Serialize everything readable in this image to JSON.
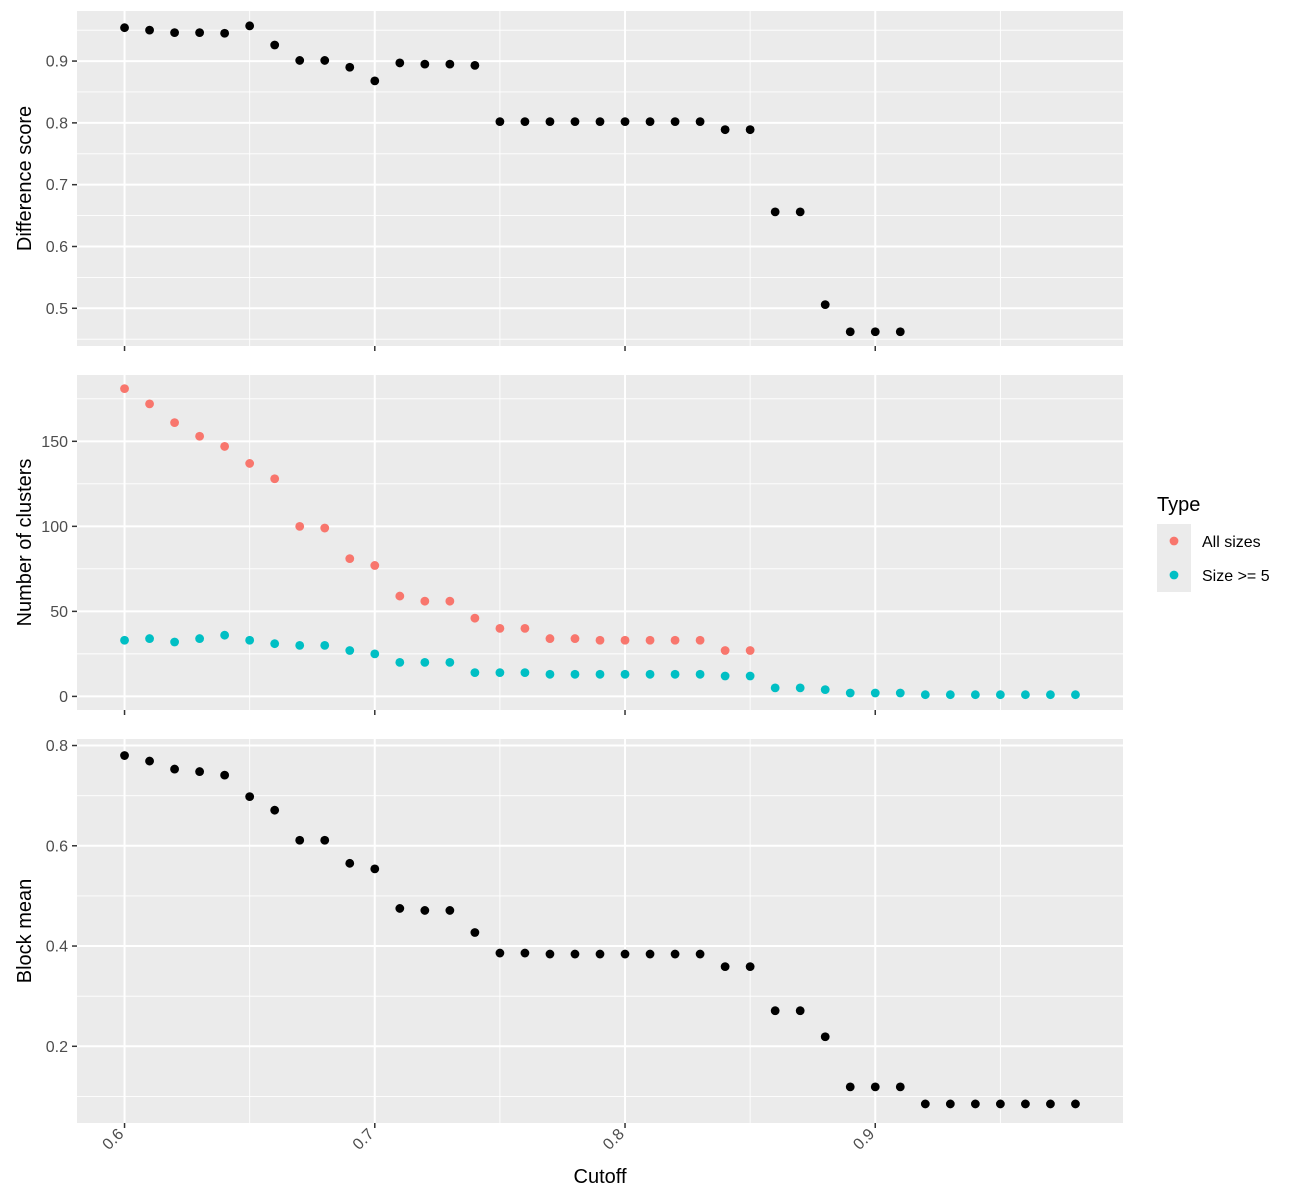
{
  "chart_data": {
    "type": "scatter",
    "x_label": "Cutoff",
    "x_ticks": [
      0.6,
      0.7,
      0.8,
      0.9
    ],
    "x_tick_labels": [
      "0.6",
      "0.7",
      "0.8",
      "0.9"
    ],
    "x_range": [
      0.581,
      0.999
    ],
    "background": "#EBEBEB",
    "grid": true,
    "legend": {
      "title": "Type",
      "position": "right",
      "entries": [
        {
          "label": "All sizes",
          "color": "#F8766D"
        },
        {
          "label": "Size >= 5",
          "color": "#00BFC4"
        }
      ]
    },
    "panels": [
      {
        "ylabel": "Difference score",
        "y_ticks": [
          0.5,
          0.6,
          0.7,
          0.8,
          0.9
        ],
        "y_tick_labels": [
          "0.5",
          "0.6",
          "0.7",
          "0.8",
          "0.9"
        ],
        "ylim": [
          0.439,
          0.981
        ],
        "series": [
          {
            "color": "#000000",
            "x": [
              0.6,
              0.61,
              0.62,
              0.63,
              0.64,
              0.65,
              0.66,
              0.67,
              0.68,
              0.69,
              0.7,
              0.71,
              0.72,
              0.73,
              0.74,
              0.75,
              0.76,
              0.77,
              0.78,
              0.79,
              0.8,
              0.81,
              0.82,
              0.83,
              0.84,
              0.85,
              0.86,
              0.87,
              0.88,
              0.89,
              0.9,
              0.91
            ],
            "y": [
              0.954,
              0.95,
              0.946,
              0.946,
              0.945,
              0.957,
              0.926,
              0.901,
              0.901,
              0.89,
              0.868,
              0.897,
              0.895,
              0.895,
              0.893,
              0.802,
              0.802,
              0.802,
              0.802,
              0.802,
              0.802,
              0.802,
              0.802,
              0.802,
              0.789,
              0.789,
              0.656,
              0.656,
              0.506,
              0.462,
              0.462,
              0.462
            ]
          }
        ]
      },
      {
        "ylabel": "Number of clusters",
        "y_ticks": [
          0,
          50,
          100,
          150
        ],
        "y_tick_labels": [
          "0",
          "50",
          "100",
          "150"
        ],
        "ylim": [
          -8,
          189
        ],
        "series": [
          {
            "name": "All sizes",
            "color": "#F8766D",
            "x": [
              0.6,
              0.61,
              0.62,
              0.63,
              0.64,
              0.65,
              0.66,
              0.67,
              0.68,
              0.69,
              0.7,
              0.71,
              0.72,
              0.73,
              0.74,
              0.75,
              0.76,
              0.77,
              0.78,
              0.79,
              0.8,
              0.81,
              0.82,
              0.83,
              0.84,
              0.85
            ],
            "y": [
              181,
              172,
              161,
              153,
              147,
              137,
              128,
              100,
              99,
              81,
              77,
              59,
              56,
              56,
              46,
              40,
              40,
              34,
              34,
              33,
              33,
              33,
              33,
              33,
              27,
              27
            ]
          },
          {
            "name": "Size >= 5",
            "color": "#00BFC4",
            "x": [
              0.6,
              0.61,
              0.62,
              0.63,
              0.64,
              0.65,
              0.66,
              0.67,
              0.68,
              0.69,
              0.7,
              0.71,
              0.72,
              0.73,
              0.74,
              0.75,
              0.76,
              0.77,
              0.78,
              0.79,
              0.8,
              0.81,
              0.82,
              0.83,
              0.84,
              0.85,
              0.86,
              0.87,
              0.88,
              0.89,
              0.9,
              0.91,
              0.92,
              0.93,
              0.94,
              0.95,
              0.96,
              0.97,
              0.98
            ],
            "y": [
              33,
              34,
              32,
              34,
              36,
              33,
              31,
              30,
              30,
              27,
              25,
              20,
              20,
              20,
              14,
              14,
              14,
              13,
              13,
              13,
              13,
              13,
              13,
              13,
              12,
              12,
              5,
              5,
              4,
              2,
              2,
              2,
              1,
              1,
              1,
              1,
              1,
              1,
              1
            ]
          }
        ]
      },
      {
        "ylabel": "Block mean",
        "y_ticks": [
          0.2,
          0.4,
          0.6,
          0.8
        ],
        "y_tick_labels": [
          "0.2",
          "0.4",
          "0.6",
          "0.8"
        ],
        "ylim": [
          0.047,
          0.813
        ],
        "series": [
          {
            "color": "#000000",
            "x": [
              0.6,
              0.61,
              0.62,
              0.63,
              0.64,
              0.65,
              0.66,
              0.67,
              0.68,
              0.69,
              0.7,
              0.71,
              0.72,
              0.73,
              0.74,
              0.75,
              0.76,
              0.77,
              0.78,
              0.79,
              0.8,
              0.81,
              0.82,
              0.83,
              0.84,
              0.85,
              0.86,
              0.87,
              0.88,
              0.89,
              0.9,
              0.91,
              0.92,
              0.93,
              0.94,
              0.95,
              0.96,
              0.97,
              0.98
            ],
            "y": [
              0.78,
              0.769,
              0.753,
              0.748,
              0.741,
              0.698,
              0.671,
              0.611,
              0.611,
              0.565,
              0.554,
              0.475,
              0.471,
              0.471,
              0.427,
              0.386,
              0.386,
              0.384,
              0.384,
              0.384,
              0.384,
              0.384,
              0.384,
              0.384,
              0.359,
              0.359,
              0.271,
              0.271,
              0.219,
              0.119,
              0.119,
              0.119,
              0.085,
              0.085,
              0.085,
              0.085,
              0.085,
              0.085,
              0.085
            ]
          }
        ]
      }
    ]
  }
}
